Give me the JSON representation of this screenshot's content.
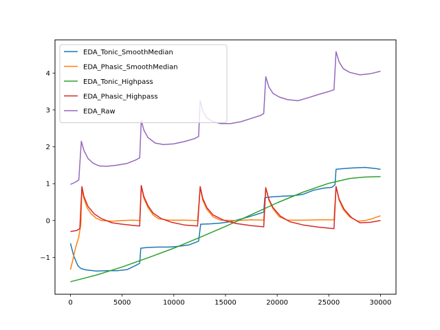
{
  "chart_data": {
    "type": "line",
    "title": "",
    "xlabel": "",
    "ylabel": "",
    "xlim": [
      -1500,
      31500
    ],
    "ylim": [
      -2.0,
      4.9
    ],
    "xticks": [
      0,
      5000,
      10000,
      15000,
      20000,
      25000,
      30000
    ],
    "yticks": [
      -1,
      0,
      1,
      2,
      3,
      4
    ],
    "grid": false,
    "legend_position": "top-left",
    "series": [
      {
        "name": "EDA_Tonic_SmoothMedian",
        "color": "#1f77b4",
        "points": [
          [
            0,
            -0.62
          ],
          [
            300,
            -0.95
          ],
          [
            700,
            -1.22
          ],
          [
            1000,
            -1.3
          ],
          [
            1500,
            -1.34
          ],
          [
            2500,
            -1.37
          ],
          [
            3500,
            -1.36
          ],
          [
            4500,
            -1.36
          ],
          [
            5500,
            -1.33
          ],
          [
            6300,
            -1.22
          ],
          [
            6700,
            -1.16
          ],
          [
            6800,
            -0.75
          ],
          [
            7500,
            -0.73
          ],
          [
            8500,
            -0.72
          ],
          [
            9500,
            -0.72
          ],
          [
            10500,
            -0.7
          ],
          [
            11500,
            -0.66
          ],
          [
            12400,
            -0.56
          ],
          [
            12600,
            -0.1
          ],
          [
            13500,
            -0.09
          ],
          [
            14500,
            -0.07
          ],
          [
            15500,
            -0.03
          ],
          [
            16500,
            0.04
          ],
          [
            17500,
            0.12
          ],
          [
            18400,
            0.2
          ],
          [
            18700,
            0.23
          ],
          [
            18800,
            0.62
          ],
          [
            19500,
            0.64
          ],
          [
            20500,
            0.66
          ],
          [
            21500,
            0.67
          ],
          [
            22500,
            0.71
          ],
          [
            23500,
            0.82
          ],
          [
            24500,
            0.88
          ],
          [
            25300,
            0.9
          ],
          [
            25600,
            0.97
          ],
          [
            25700,
            1.39
          ],
          [
            26500,
            1.41
          ],
          [
            27500,
            1.43
          ],
          [
            28500,
            1.44
          ],
          [
            29500,
            1.41
          ],
          [
            30000,
            1.39
          ]
        ]
      },
      {
        "name": "EDA_Phasic_SmoothMedian",
        "color": "#ff7f0e",
        "points": [
          [
            0,
            -1.33
          ],
          [
            200,
            -1.1
          ],
          [
            500,
            -0.72
          ],
          [
            800,
            -0.45
          ],
          [
            1000,
            -0.1
          ],
          [
            1100,
            0.85
          ],
          [
            1300,
            0.6
          ],
          [
            1600,
            0.35
          ],
          [
            2000,
            0.18
          ],
          [
            2500,
            0.06
          ],
          [
            3000,
            0.0
          ],
          [
            4000,
            -0.02
          ],
          [
            5000,
            0.0
          ],
          [
            6000,
            0.01
          ],
          [
            6700,
            0.0
          ],
          [
            6850,
            0.92
          ],
          [
            7100,
            0.6
          ],
          [
            7500,
            0.35
          ],
          [
            8000,
            0.15
          ],
          [
            8500,
            0.05
          ],
          [
            9500,
            0.01
          ],
          [
            11000,
            0.01
          ],
          [
            12300,
            0.0
          ],
          [
            12550,
            0.9
          ],
          [
            12800,
            0.55
          ],
          [
            13200,
            0.3
          ],
          [
            13800,
            0.1
          ],
          [
            14500,
            0.01
          ],
          [
            16000,
            0.0
          ],
          [
            17500,
            0.02
          ],
          [
            18700,
            0.01
          ],
          [
            18900,
            0.9
          ],
          [
            19200,
            0.55
          ],
          [
            19600,
            0.32
          ],
          [
            20200,
            0.1
          ],
          [
            21000,
            0.01
          ],
          [
            22500,
            0.01
          ],
          [
            24000,
            0.02
          ],
          [
            25500,
            0.02
          ],
          [
            25700,
            0.92
          ],
          [
            26000,
            0.55
          ],
          [
            26400,
            0.3
          ],
          [
            27000,
            0.1
          ],
          [
            27800,
            -0.02
          ],
          [
            28500,
            0.0
          ],
          [
            29200,
            0.05
          ],
          [
            30000,
            0.13
          ]
        ]
      },
      {
        "name": "EDA_Tonic_Highpass",
        "color": "#2ca02c",
        "points": [
          [
            0,
            -1.66
          ],
          [
            2500,
            -1.48
          ],
          [
            5000,
            -1.26
          ],
          [
            7500,
            -1.01
          ],
          [
            10000,
            -0.75
          ],
          [
            12500,
            -0.46
          ],
          [
            15000,
            -0.16
          ],
          [
            17500,
            0.16
          ],
          [
            20000,
            0.48
          ],
          [
            22500,
            0.77
          ],
          [
            25000,
            1.01
          ],
          [
            27000,
            1.14
          ],
          [
            28500,
            1.18
          ],
          [
            30000,
            1.19
          ]
        ]
      },
      {
        "name": "EDA_Phasic_Highpass",
        "color": "#d62728",
        "points": [
          [
            0,
            -0.3
          ],
          [
            600,
            -0.27
          ],
          [
            900,
            -0.22
          ],
          [
            1100,
            0.92
          ],
          [
            1300,
            0.65
          ],
          [
            1700,
            0.38
          ],
          [
            2300,
            0.18
          ],
          [
            3000,
            0.05
          ],
          [
            4000,
            -0.06
          ],
          [
            5000,
            -0.1
          ],
          [
            6000,
            -0.13
          ],
          [
            6700,
            -0.15
          ],
          [
            6850,
            0.95
          ],
          [
            7100,
            0.65
          ],
          [
            7500,
            0.4
          ],
          [
            8000,
            0.2
          ],
          [
            8800,
            0.05
          ],
          [
            9800,
            -0.05
          ],
          [
            11000,
            -0.12
          ],
          [
            12300,
            -0.15
          ],
          [
            12550,
            0.92
          ],
          [
            12800,
            0.6
          ],
          [
            13200,
            0.35
          ],
          [
            13800,
            0.15
          ],
          [
            14800,
            0.01
          ],
          [
            16000,
            -0.08
          ],
          [
            17500,
            -0.14
          ],
          [
            18700,
            -0.17
          ],
          [
            18900,
            0.88
          ],
          [
            19200,
            0.58
          ],
          [
            19600,
            0.35
          ],
          [
            20300,
            0.12
          ],
          [
            21200,
            -0.03
          ],
          [
            22500,
            -0.12
          ],
          [
            24000,
            -0.18
          ],
          [
            25500,
            -0.22
          ],
          [
            25700,
            0.92
          ],
          [
            26000,
            0.58
          ],
          [
            26500,
            0.3
          ],
          [
            27200,
            0.08
          ],
          [
            28000,
            -0.06
          ],
          [
            29000,
            -0.05
          ],
          [
            30000,
            0.0
          ]
        ]
      },
      {
        "name": "EDA_Raw",
        "color": "#9467bd",
        "points": [
          [
            0,
            0.98
          ],
          [
            400,
            1.03
          ],
          [
            800,
            1.1
          ],
          [
            1050,
            2.15
          ],
          [
            1300,
            1.9
          ],
          [
            1700,
            1.68
          ],
          [
            2200,
            1.55
          ],
          [
            2800,
            1.48
          ],
          [
            3500,
            1.47
          ],
          [
            4500,
            1.5
          ],
          [
            5500,
            1.55
          ],
          [
            6300,
            1.64
          ],
          [
            6700,
            1.7
          ],
          [
            6850,
            2.72
          ],
          [
            7100,
            2.45
          ],
          [
            7500,
            2.25
          ],
          [
            8200,
            2.1
          ],
          [
            9000,
            2.06
          ],
          [
            10000,
            2.08
          ],
          [
            11000,
            2.14
          ],
          [
            12000,
            2.22
          ],
          [
            12400,
            2.28
          ],
          [
            12550,
            3.25
          ],
          [
            12800,
            2.98
          ],
          [
            13200,
            2.78
          ],
          [
            13800,
            2.68
          ],
          [
            14500,
            2.63
          ],
          [
            15500,
            2.63
          ],
          [
            16500,
            2.68
          ],
          [
            17500,
            2.77
          ],
          [
            18400,
            2.85
          ],
          [
            18700,
            2.9
          ],
          [
            18900,
            3.9
          ],
          [
            19200,
            3.62
          ],
          [
            19600,
            3.45
          ],
          [
            20200,
            3.35
          ],
          [
            21000,
            3.28
          ],
          [
            22000,
            3.25
          ],
          [
            23000,
            3.33
          ],
          [
            24000,
            3.42
          ],
          [
            25000,
            3.5
          ],
          [
            25500,
            3.55
          ],
          [
            25700,
            4.58
          ],
          [
            26000,
            4.3
          ],
          [
            26400,
            4.12
          ],
          [
            27000,
            4.02
          ],
          [
            28000,
            3.95
          ],
          [
            29000,
            3.98
          ],
          [
            30000,
            4.05
          ]
        ]
      }
    ]
  }
}
